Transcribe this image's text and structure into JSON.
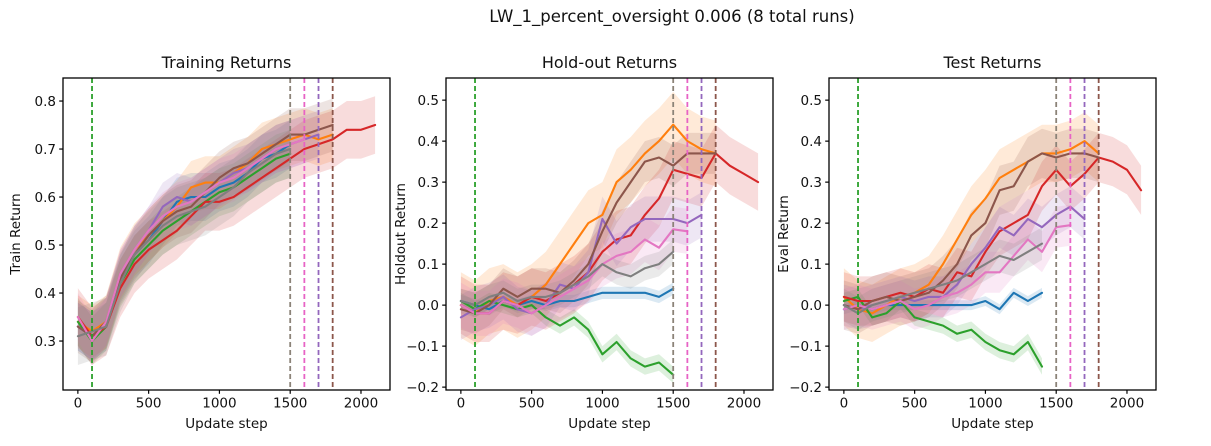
{
  "figure": {
    "suptitle": "LW_1_percent_oversight 0.006 (8 total runs)"
  },
  "chart_data": [
    {
      "type": "line",
      "title": "Training Returns",
      "xlabel": "Update step",
      "ylabel": "Train Return",
      "x_start": 0,
      "x_step": 100,
      "xlim": [
        -105,
        2205
      ],
      "ylim": [
        0.198,
        0.848
      ],
      "xticks": [
        0,
        500,
        1000,
        1500,
        2000
      ],
      "yticks": [
        0.3,
        0.4,
        0.5,
        0.6,
        0.7,
        0.8
      ],
      "grid": false,
      "legend": "none",
      "vlines": [
        {
          "x": 100,
          "color": "#2ca02c"
        },
        {
          "x": 1500,
          "color": "#8b8378"
        },
        {
          "x": 1600,
          "color": "#e763c5"
        },
        {
          "x": 1700,
          "color": "#9467bd"
        },
        {
          "x": 1800,
          "color": "#8c564b"
        }
      ],
      "series": [
        {
          "name": "run-blue",
          "color": "#1f77b4",
          "band": 0.05,
          "values": [
            0.33,
            0.31,
            0.33,
            0.43,
            0.48,
            0.51,
            0.55,
            0.59,
            0.6,
            0.6,
            0.62,
            0.63,
            0.65,
            0.68,
            0.69,
            0.71
          ]
        },
        {
          "name": "run-orange",
          "color": "#ff7f0e",
          "band": 0.055,
          "values": [
            0.34,
            0.32,
            0.34,
            0.44,
            0.49,
            0.52,
            0.55,
            0.58,
            0.62,
            0.63,
            0.63,
            0.65,
            0.67,
            0.7,
            0.71,
            0.72,
            0.73,
            0.72,
            0.73
          ]
        },
        {
          "name": "run-green",
          "color": "#2ca02c",
          "band": 0.05,
          "values": [
            0.34,
            0.3,
            0.33,
            0.42,
            0.47,
            0.5,
            0.53,
            0.55,
            0.57,
            0.59,
            0.61,
            0.62,
            0.64,
            0.66,
            0.68,
            0.69
          ]
        },
        {
          "name": "run-red",
          "color": "#d62728",
          "band": 0.06,
          "values": [
            0.35,
            0.31,
            0.33,
            0.41,
            0.46,
            0.49,
            0.51,
            0.53,
            0.56,
            0.59,
            0.59,
            0.6,
            0.62,
            0.64,
            0.66,
            0.68,
            0.7,
            0.71,
            0.72,
            0.74,
            0.74,
            0.75
          ]
        },
        {
          "name": "run-purple",
          "color": "#9467bd",
          "band": 0.05,
          "values": [
            0.33,
            0.31,
            0.34,
            0.44,
            0.49,
            0.53,
            0.58,
            0.6,
            0.59,
            0.61,
            0.63,
            0.65,
            0.66,
            0.68,
            0.7,
            0.71,
            0.72,
            0.73
          ]
        },
        {
          "name": "run-brown",
          "color": "#8c564b",
          "band": 0.055,
          "values": [
            0.33,
            0.31,
            0.34,
            0.43,
            0.48,
            0.52,
            0.55,
            0.57,
            0.58,
            0.61,
            0.64,
            0.66,
            0.67,
            0.69,
            0.71,
            0.73,
            0.73,
            0.74,
            0.75
          ]
        },
        {
          "name": "run-pink",
          "color": "#e377c2",
          "band": 0.05,
          "values": [
            0.35,
            0.3,
            0.34,
            0.44,
            0.49,
            0.53,
            0.56,
            0.58,
            0.59,
            0.61,
            0.63,
            0.64,
            0.66,
            0.68,
            0.7,
            0.71,
            0.72
          ]
        },
        {
          "name": "run-gray",
          "color": "#7f7f7f",
          "band": 0.06,
          "values": [
            0.31,
            0.32,
            0.33,
            0.42,
            0.48,
            0.51,
            0.54,
            0.56,
            0.57,
            0.58,
            0.6,
            0.62,
            0.65,
            0.67,
            0.69,
            0.7
          ]
        }
      ]
    },
    {
      "type": "line",
      "title": "Hold-out Returns",
      "xlabel": "Update step",
      "ylabel": "Holdout Return",
      "x_start": 0,
      "x_step": 100,
      "xlim": [
        -105,
        2205
      ],
      "ylim": [
        -0.207,
        0.554
      ],
      "xticks": [
        0,
        500,
        1000,
        1500,
        2000
      ],
      "yticks": [
        -0.2,
        -0.1,
        0.0,
        0.1,
        0.2,
        0.3,
        0.4,
        0.5
      ],
      "grid": false,
      "legend": "none",
      "vlines": [
        {
          "x": 100,
          "color": "#2ca02c"
        },
        {
          "x": 1500,
          "color": "#8b8378"
        },
        {
          "x": 1600,
          "color": "#e763c5"
        },
        {
          "x": 1700,
          "color": "#9467bd"
        },
        {
          "x": 1800,
          "color": "#8c564b"
        }
      ],
      "series": [
        {
          "name": "run-blue",
          "color": "#1f77b4",
          "band": 0.015,
          "values": [
            0.01,
            0.0,
            -0.01,
            0.01,
            0.0,
            0.01,
            0.0,
            0.01,
            0.01,
            0.02,
            0.03,
            0.03,
            0.03,
            0.03,
            0.02,
            0.04
          ]
        },
        {
          "name": "run-orange",
          "color": "#ff7f0e",
          "band": 0.08,
          "values": [
            0.0,
            -0.02,
            0.01,
            0.02,
            0.0,
            0.02,
            0.05,
            0.1,
            0.15,
            0.2,
            0.22,
            0.3,
            0.33,
            0.37,
            0.4,
            0.44,
            0.4,
            0.38,
            0.37
          ]
        },
        {
          "name": "run-green",
          "color": "#2ca02c",
          "band": 0.02,
          "values": [
            0.01,
            -0.01,
            0.01,
            0.0,
            -0.01,
            0.0,
            -0.03,
            -0.05,
            -0.03,
            -0.06,
            -0.12,
            -0.09,
            -0.13,
            -0.15,
            -0.14,
            -0.17
          ]
        },
        {
          "name": "run-red",
          "color": "#d62728",
          "band": 0.07,
          "values": [
            0.0,
            -0.02,
            -0.02,
            0.01,
            0.0,
            0.02,
            0.01,
            0.03,
            0.05,
            0.08,
            0.13,
            0.16,
            0.17,
            0.22,
            0.26,
            0.33,
            0.32,
            0.31,
            0.37,
            0.34,
            0.32,
            0.3
          ]
        },
        {
          "name": "run-purple",
          "color": "#9467bd",
          "band": 0.055,
          "values": [
            -0.03,
            -0.01,
            0.0,
            0.02,
            -0.01,
            -0.02,
            0.0,
            0.05,
            0.04,
            0.08,
            0.21,
            0.15,
            0.19,
            0.21,
            0.21,
            0.21,
            0.2,
            0.22
          ]
        },
        {
          "name": "run-brown",
          "color": "#8c564b",
          "band": 0.05,
          "values": [
            -0.01,
            -0.02,
            0.0,
            0.04,
            0.02,
            0.04,
            0.04,
            0.03,
            0.06,
            0.1,
            0.18,
            0.25,
            0.3,
            0.35,
            0.36,
            0.34,
            0.37,
            0.37,
            0.37
          ]
        },
        {
          "name": "run-pink",
          "color": "#e377c2",
          "band": 0.055,
          "values": [
            0.0,
            -0.02,
            -0.02,
            0.01,
            0.0,
            -0.02,
            0.0,
            0.02,
            0.04,
            0.06,
            0.1,
            0.12,
            0.13,
            0.16,
            0.14,
            0.185,
            0.18
          ]
        },
        {
          "name": "run-gray",
          "color": "#7f7f7f",
          "band": 0.03,
          "values": [
            0.01,
            0.0,
            0.02,
            0.03,
            0.01,
            0.02,
            0.02,
            0.03,
            0.05,
            0.07,
            0.1,
            0.08,
            0.07,
            0.09,
            0.1,
            0.13
          ]
        }
      ]
    },
    {
      "type": "line",
      "title": "Test Returns",
      "xlabel": "Update step",
      "ylabel": "Eval Return",
      "x_start": 0,
      "x_step": 100,
      "xlim": [
        -105,
        2205
      ],
      "ylim": [
        -0.207,
        0.554
      ],
      "xticks": [
        0,
        500,
        1000,
        1500,
        2000
      ],
      "yticks": [
        -0.2,
        -0.1,
        0.0,
        0.1,
        0.2,
        0.3,
        0.4,
        0.5
      ],
      "grid": false,
      "legend": "none",
      "vlines": [
        {
          "x": 100,
          "color": "#2ca02c"
        },
        {
          "x": 1500,
          "color": "#8b8378"
        },
        {
          "x": 1600,
          "color": "#e763c5"
        },
        {
          "x": 1700,
          "color": "#9467bd"
        },
        {
          "x": 1800,
          "color": "#8c564b"
        }
      ],
      "series": [
        {
          "name": "run-blue",
          "color": "#1f77b4",
          "band": 0.012,
          "values": [
            -0.01,
            0.0,
            -0.01,
            0.0,
            0.0,
            0.0,
            0.0,
            0.0,
            0.0,
            0.0,
            0.01,
            -0.01,
            0.03,
            0.01,
            0.03
          ]
        },
        {
          "name": "run-orange",
          "color": "#ff7f0e",
          "band": 0.07,
          "values": [
            0.02,
            -0.01,
            -0.02,
            0.0,
            0.02,
            0.03,
            0.05,
            0.1,
            0.16,
            0.22,
            0.26,
            0.31,
            0.33,
            0.35,
            0.37,
            0.37,
            0.38,
            0.4,
            0.37
          ]
        },
        {
          "name": "run-green",
          "color": "#2ca02c",
          "band": 0.02,
          "values": [
            0.01,
            0.02,
            -0.03,
            -0.02,
            0.01,
            -0.03,
            -0.04,
            -0.05,
            -0.07,
            -0.06,
            -0.09,
            -0.11,
            -0.12,
            -0.09,
            -0.15
          ]
        },
        {
          "name": "run-red",
          "color": "#d62728",
          "band": 0.06,
          "values": [
            0.02,
            0.01,
            0.01,
            0.02,
            0.03,
            0.02,
            0.04,
            0.03,
            0.08,
            0.07,
            0.13,
            0.18,
            0.2,
            0.22,
            0.29,
            0.33,
            0.29,
            0.32,
            0.36,
            0.35,
            0.33,
            0.28
          ]
        },
        {
          "name": "run-purple",
          "color": "#9467bd",
          "band": 0.05,
          "values": [
            0.0,
            -0.01,
            0.0,
            0.01,
            0.02,
            0.01,
            0.02,
            0.02,
            0.05,
            0.1,
            0.14,
            0.19,
            0.17,
            0.21,
            0.19,
            0.22,
            0.24,
            0.21
          ]
        },
        {
          "name": "run-brown",
          "color": "#8c564b",
          "band": 0.06,
          "values": [
            0.0,
            -0.01,
            0.01,
            0.02,
            0.01,
            0.02,
            0.03,
            0.06,
            0.1,
            0.17,
            0.2,
            0.28,
            0.29,
            0.35,
            0.37,
            0.36,
            0.37,
            0.37,
            0.36
          ]
        },
        {
          "name": "run-pink",
          "color": "#e377c2",
          "band": 0.05,
          "values": [
            -0.01,
            0.0,
            -0.01,
            0.0,
            0.01,
            -0.01,
            0.0,
            0.02,
            0.03,
            0.05,
            0.08,
            0.08,
            0.12,
            0.16,
            0.13,
            0.19,
            0.195
          ]
        },
        {
          "name": "run-gray",
          "color": "#7f7f7f",
          "band": 0.04,
          "values": [
            0.0,
            -0.02,
            0.0,
            0.01,
            0.02,
            0.03,
            0.04,
            0.05,
            0.06,
            0.08,
            0.1,
            0.12,
            0.11,
            0.13,
            0.15
          ]
        }
      ]
    }
  ]
}
